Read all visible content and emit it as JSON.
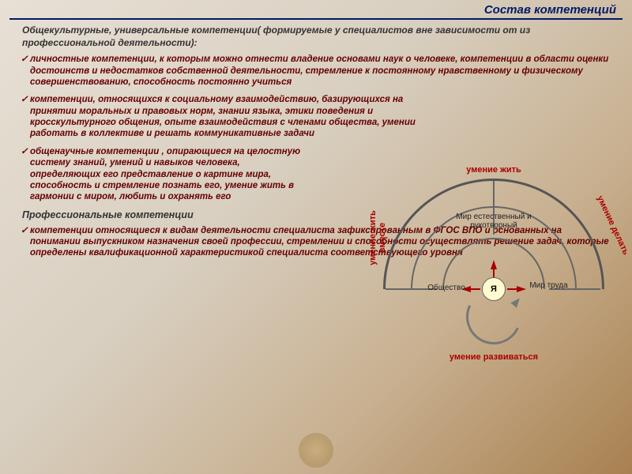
{
  "header": {
    "title": "Состав компетенций"
  },
  "intro": "Общекультурные, универсальные компетенции( формируемые у специалистов вне зависимости от из профессиональной деятельности):",
  "bullets": {
    "b1": "личностные компетенции, к которым можно отнести владение основами наук о человеке, компетенции в области оценки достоинств и недостатков собственной деятельности, стремление к постоянному нравственному и физическому совершенствованию, способность постоянно учиться",
    "b2": "компетенции, относящихся к социальному взаимодействию, базирующихся на принятии моральных и правовых норм, знании языка, этики поведения и кросскультурного общения, опыте взаимодействия с членами общества, умении работать в коллективе и решать коммуникативные задачи",
    "b3": "общенаучные компетенции , опирающиеся на целостную систему знаний, умений и навыков человека, определяющих его представление о картине мира, способность и стремление познать его, умение жить в гармонии с миром, любить и охранять его"
  },
  "section2": "Профессиональные компетенции",
  "bullet4": "компетенции относящиеся к видам деятельности специалиста зафиксированным в ФГОС ВПО и основанных на понимании выпускником назначения своей профессии, стремлении и способности осуществлять решение задач, которые определены квалификационной характеристикой специалиста соответствующего уровня",
  "diagram": {
    "center": "Я",
    "inner": {
      "top": "Мир естественный и рукотворный",
      "left": "Общество",
      "right": "Мир труда"
    },
    "outer": {
      "top": "умение жить",
      "left": "умение жить вместе",
      "right": "умение делать",
      "bottom": "умение развиваться"
    },
    "colors": {
      "accent": "#aa0000",
      "node_fill": "#fffbd0",
      "stroke": "#666",
      "header": "#001a66"
    }
  }
}
